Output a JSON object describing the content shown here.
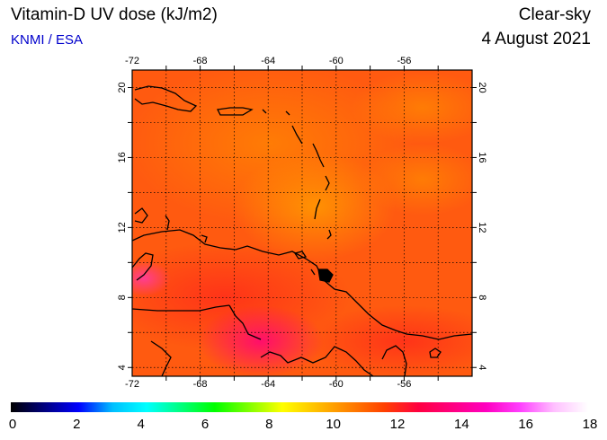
{
  "header": {
    "title": "Vitamin-D UV dose (kJ/m2)",
    "credit": "KNMI / ESA",
    "condition": "Clear-sky",
    "date": "4 August 2021"
  },
  "map": {
    "lon_ticks": [
      "-72",
      "-68",
      "-64",
      "-60",
      "-56"
    ],
    "lat_ticks": [
      "20",
      "16",
      "12",
      "8",
      "4"
    ],
    "lon_values": [
      -72,
      -68,
      -64,
      -60,
      -56
    ],
    "lat_values": [
      20,
      16,
      12,
      8,
      4
    ],
    "extent": {
      "lon_min": -72,
      "lon_max": -52,
      "lat_min": 3.5,
      "lat_max": 21
    }
  },
  "colorbar": {
    "labels": [
      "0",
      "2",
      "4",
      "6",
      "8",
      "10",
      "12",
      "14",
      "16",
      "18"
    ],
    "min": 0,
    "max": 18,
    "colors": [
      "#000000",
      "#000080",
      "#0000ff",
      "#00bfff",
      "#00ffff",
      "#00ff7f",
      "#00ff00",
      "#7fff00",
      "#ffff00",
      "#ffbf00",
      "#ff8000",
      "#ff4000",
      "#ff0040",
      "#ff0080",
      "#ff00c0",
      "#ff40ff",
      "#ffc0ff",
      "#ffffff"
    ]
  }
}
